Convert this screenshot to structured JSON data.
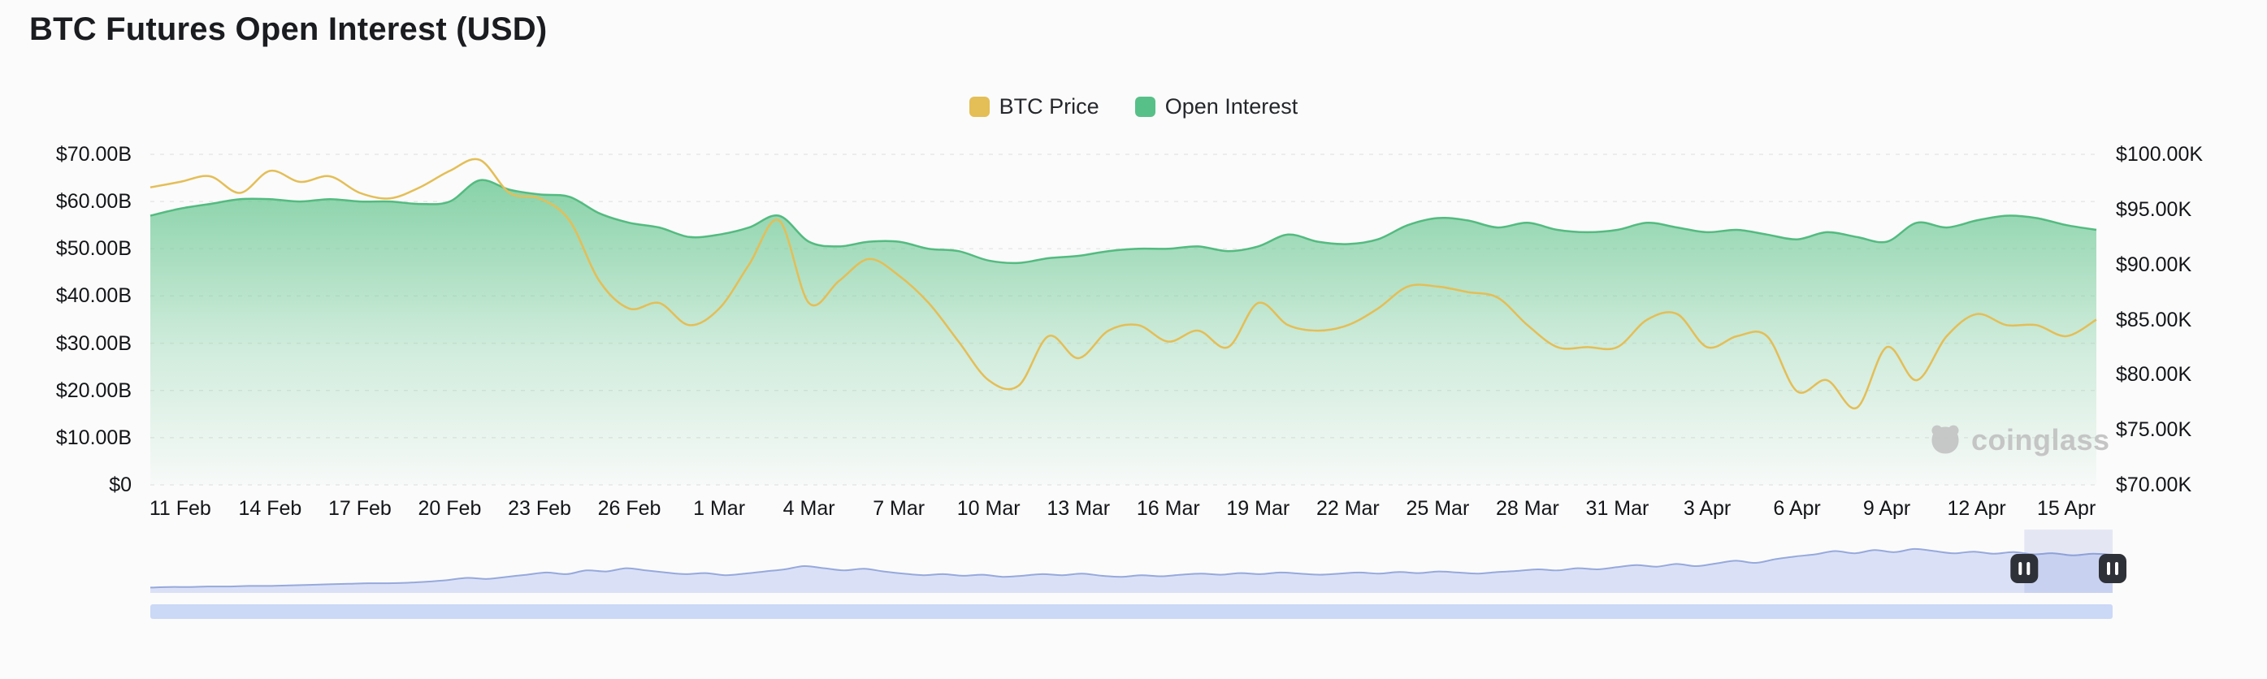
{
  "page": {
    "title": "BTC Futures Open Interest (USD)"
  },
  "legend": [
    {
      "label": "BTC Price",
      "color": "#E4BE56"
    },
    {
      "label": "Open Interest",
      "color": "#57C088"
    }
  ],
  "watermark": {
    "text": "coinglass"
  },
  "chart_data": {
    "type": "line",
    "title": "BTC Futures Open Interest (USD)",
    "grid": "dashed-horizontal",
    "legend_position": "top-center",
    "x": [
      "10 Feb",
      "11 Feb",
      "12 Feb",
      "13 Feb",
      "14 Feb",
      "15 Feb",
      "16 Feb",
      "17 Feb",
      "18 Feb",
      "19 Feb",
      "20 Feb",
      "21 Feb",
      "22 Feb",
      "23 Feb",
      "24 Feb",
      "25 Feb",
      "26 Feb",
      "27 Feb",
      "28 Feb",
      "1 Mar",
      "2 Mar",
      "3 Mar",
      "4 Mar",
      "5 Mar",
      "6 Mar",
      "7 Mar",
      "8 Mar",
      "9 Mar",
      "10 Mar",
      "11 Mar",
      "12 Mar",
      "13 Mar",
      "14 Mar",
      "15 Mar",
      "16 Mar",
      "17 Mar",
      "18 Mar",
      "19 Mar",
      "20 Mar",
      "21 Mar",
      "22 Mar",
      "23 Mar",
      "24 Mar",
      "25 Mar",
      "26 Mar",
      "27 Mar",
      "28 Mar",
      "29 Mar",
      "30 Mar",
      "31 Mar",
      "1 Apr",
      "2 Apr",
      "3 Apr",
      "4 Apr",
      "5 Apr",
      "6 Apr",
      "7 Apr",
      "8 Apr",
      "9 Apr",
      "10 Apr",
      "11 Apr",
      "12 Apr",
      "13 Apr",
      "14 Apr",
      "15 Apr",
      "16 Apr"
    ],
    "x_ticks": [
      "11 Feb",
      "14 Feb",
      "17 Feb",
      "20 Feb",
      "23 Feb",
      "26 Feb",
      "1 Mar",
      "4 Mar",
      "7 Mar",
      "10 Mar",
      "13 Mar",
      "16 Mar",
      "19 Mar",
      "22 Mar",
      "25 Mar",
      "28 Mar",
      "31 Mar",
      "3 Apr",
      "6 Apr",
      "9 Apr",
      "12 Apr",
      "15 Apr"
    ],
    "series": [
      {
        "name": "BTC Price",
        "axis": "right",
        "unit": "USD thousands",
        "color": "#E4BE56",
        "values": [
          97,
          97.5,
          98,
          96.5,
          98.5,
          97.5,
          98,
          96.5,
          96,
          97,
          98.5,
          99.5,
          96.5,
          96,
          94,
          88.5,
          86,
          86.5,
          84.5,
          86,
          90,
          94,
          86.5,
          88.5,
          90.5,
          89,
          86.5,
          83,
          79.5,
          79,
          83.5,
          81.5,
          84,
          84.5,
          83,
          84,
          82.5,
          86.5,
          84.5,
          84,
          84.5,
          86,
          88,
          88,
          87.5,
          87,
          84.5,
          82.5,
          82.5,
          82.5,
          85,
          85.5,
          82.5,
          83.5,
          83.5,
          78.5,
          79.5,
          77,
          82.5,
          79.5,
          83.5,
          85.5,
          84.5,
          84.5,
          83.5,
          85
        ]
      },
      {
        "name": "Open Interest",
        "axis": "left",
        "unit": "USD billions",
        "color": "#53BB80",
        "fill": "#6BC893",
        "values": [
          57,
          58.5,
          59.5,
          60.5,
          60.5,
          60,
          60.5,
          60,
          60,
          59.5,
          60,
          64.5,
          62.5,
          61.5,
          61,
          57.5,
          55.5,
          54.5,
          52.5,
          53,
          54.5,
          57,
          51.5,
          50.5,
          51.5,
          51.5,
          50,
          49.5,
          47.5,
          47,
          48,
          48.5,
          49.5,
          50,
          50,
          50.5,
          49.5,
          50.5,
          53,
          51.5,
          51,
          52,
          55,
          56.5,
          56,
          54.5,
          55.5,
          54,
          53.5,
          54,
          55.5,
          54.5,
          53.5,
          54,
          53,
          52,
          53.5,
          52.5,
          51.5,
          55.5,
          54.5,
          56,
          57,
          56.5,
          55,
          54
        ]
      }
    ],
    "left_axis": {
      "min": 0,
      "max": 70,
      "ticks": [
        "$0",
        "$10.00B",
        "$20.00B",
        "$30.00B",
        "$40.00B",
        "$50.00B",
        "$60.00B",
        "$70.00B"
      ]
    },
    "right_axis": {
      "min": 70,
      "max": 100,
      "ticks": [
        "$70.00K",
        "$75.00K",
        "$80.00K",
        "$85.00K",
        "$90.00K",
        "$95.00K",
        "$100.00K"
      ]
    }
  },
  "navigator": {
    "selection": [
      0.955,
      1.0
    ],
    "line_color": "#97A9DC",
    "fill_color": "#D3DCF6",
    "bar_color": "#CBD8F6",
    "selection_color": "rgba(90,115,200,0.14)",
    "handle_color": "#2E3137",
    "handle_icon": "pause",
    "values": [
      0.1,
      0.11,
      0.11,
      0.12,
      0.12,
      0.13,
      0.13,
      0.14,
      0.15,
      0.16,
      0.17,
      0.18,
      0.18,
      0.19,
      0.21,
      0.24,
      0.28,
      0.26,
      0.3,
      0.34,
      0.38,
      0.35,
      0.42,
      0.4,
      0.46,
      0.42,
      0.38,
      0.35,
      0.37,
      0.33,
      0.36,
      0.4,
      0.44,
      0.5,
      0.46,
      0.42,
      0.45,
      0.4,
      0.36,
      0.33,
      0.35,
      0.32,
      0.34,
      0.3,
      0.32,
      0.35,
      0.33,
      0.36,
      0.32,
      0.3,
      0.33,
      0.31,
      0.34,
      0.36,
      0.34,
      0.37,
      0.35,
      0.38,
      0.36,
      0.34,
      0.36,
      0.38,
      0.36,
      0.39,
      0.37,
      0.4,
      0.38,
      0.36,
      0.39,
      0.41,
      0.44,
      0.42,
      0.46,
      0.44,
      0.48,
      0.52,
      0.49,
      0.54,
      0.5,
      0.55,
      0.6,
      0.56,
      0.63,
      0.68,
      0.72,
      0.78,
      0.74,
      0.8,
      0.76,
      0.82,
      0.78,
      0.74,
      0.77,
      0.73,
      0.76,
      0.72,
      0.74,
      0.7,
      0.73,
      0.71
    ]
  }
}
